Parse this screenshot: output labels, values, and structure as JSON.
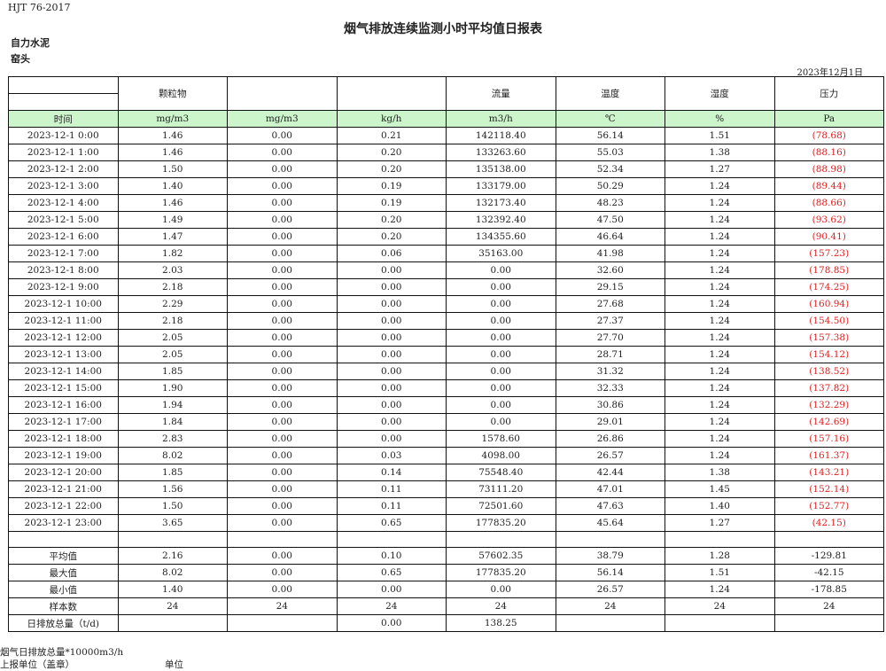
{
  "header": {
    "standard": "HJT  76-2017",
    "title": "烟气排放连续监测小时平均值日报表",
    "company": "自力水泥",
    "unit": "窑头",
    "date": "2023年12月1日"
  },
  "table": {
    "columns": [
      "",
      "颗粒物",
      "",
      "",
      "流量",
      "温度",
      "湿度",
      "压力"
    ],
    "units": [
      "时间",
      "mg/m3",
      "mg/m3",
      "kg/h",
      "m3/h",
      "℃",
      "%",
      "Pa"
    ],
    "rows": [
      [
        "2023-12-1 0:00",
        "1.46",
        "0.00",
        "0.21",
        "142118.40",
        "56.14",
        "1.51",
        "(78.68)"
      ],
      [
        "2023-12-1 1:00",
        "1.46",
        "0.00",
        "0.20",
        "133263.60",
        "55.03",
        "1.38",
        "(88.16)"
      ],
      [
        "2023-12-1 2:00",
        "1.50",
        "0.00",
        "0.20",
        "135138.00",
        "52.34",
        "1.27",
        "(88.98)"
      ],
      [
        "2023-12-1 3:00",
        "1.40",
        "0.00",
        "0.19",
        "133179.00",
        "50.29",
        "1.24",
        "(89.44)"
      ],
      [
        "2023-12-1 4:00",
        "1.46",
        "0.00",
        "0.19",
        "132173.40",
        "48.23",
        "1.24",
        "(88.66)"
      ],
      [
        "2023-12-1 5:00",
        "1.49",
        "0.00",
        "0.20",
        "132392.40",
        "47.50",
        "1.24",
        "(93.62)"
      ],
      [
        "2023-12-1 6:00",
        "1.47",
        "0.00",
        "0.20",
        "134355.60",
        "46.64",
        "1.24",
        "(90.41)"
      ],
      [
        "2023-12-1 7:00",
        "1.82",
        "0.00",
        "0.06",
        "35163.00",
        "41.98",
        "1.24",
        "(157.23)"
      ],
      [
        "2023-12-1 8:00",
        "2.03",
        "0.00",
        "0.00",
        "0.00",
        "32.60",
        "1.24",
        "(178.85)"
      ],
      [
        "2023-12-1 9:00",
        "2.18",
        "0.00",
        "0.00",
        "0.00",
        "29.15",
        "1.24",
        "(174.25)"
      ],
      [
        "2023-12-1 10:00",
        "2.29",
        "0.00",
        "0.00",
        "0.00",
        "27.68",
        "1.24",
        "(160.94)"
      ],
      [
        "2023-12-1 11:00",
        "2.18",
        "0.00",
        "0.00",
        "0.00",
        "27.37",
        "1.24",
        "(154.50)"
      ],
      [
        "2023-12-1 12:00",
        "2.05",
        "0.00",
        "0.00",
        "0.00",
        "27.70",
        "1.24",
        "(157.38)"
      ],
      [
        "2023-12-1 13:00",
        "2.05",
        "0.00",
        "0.00",
        "0.00",
        "28.71",
        "1.24",
        "(154.12)"
      ],
      [
        "2023-12-1 14:00",
        "1.85",
        "0.00",
        "0.00",
        "0.00",
        "31.32",
        "1.24",
        "(138.52)"
      ],
      [
        "2023-12-1 15:00",
        "1.90",
        "0.00",
        "0.00",
        "0.00",
        "32.33",
        "1.24",
        "(137.82)"
      ],
      [
        "2023-12-1 16:00",
        "1.94",
        "0.00",
        "0.00",
        "0.00",
        "30.86",
        "1.24",
        "(132.29)"
      ],
      [
        "2023-12-1 17:00",
        "1.84",
        "0.00",
        "0.00",
        "0.00",
        "29.01",
        "1.24",
        "(142.69)"
      ],
      [
        "2023-12-1 18:00",
        "2.83",
        "0.00",
        "0.00",
        "1578.60",
        "26.86",
        "1.24",
        "(157.16)"
      ],
      [
        "2023-12-1 19:00",
        "8.02",
        "0.00",
        "0.03",
        "4098.00",
        "26.57",
        "1.24",
        "(161.37)"
      ],
      [
        "2023-12-1 20:00",
        "1.85",
        "0.00",
        "0.14",
        "75548.40",
        "42.44",
        "1.38",
        "(143.21)"
      ],
      [
        "2023-12-1 21:00",
        "1.56",
        "0.00",
        "0.11",
        "73111.20",
        "47.01",
        "1.45",
        "(152.14)"
      ],
      [
        "2023-12-1 22:00",
        "1.50",
        "0.00",
        "0.11",
        "72501.60",
        "47.63",
        "1.40",
        "(152.77)"
      ],
      [
        "2023-12-1 23:00",
        "3.65",
        "0.00",
        "0.65",
        "177835.20",
        "45.64",
        "1.27",
        "(42.15)"
      ]
    ],
    "summary": [
      [
        "平均值",
        "2.16",
        "0.00",
        "0.10",
        "57602.35",
        "38.79",
        "1.28",
        "-129.81"
      ],
      [
        "最大值",
        "8.02",
        "0.00",
        "0.65",
        "177835.20",
        "56.14",
        "1.51",
        "-42.15"
      ],
      [
        "最小值",
        "1.40",
        "0.00",
        "0.00",
        "0.00",
        "26.57",
        "1.24",
        "-178.85"
      ],
      [
        "样本数",
        "24",
        "24",
        "24",
        "24",
        "24",
        "24",
        "24"
      ],
      [
        "日排放总量（t/d)",
        "",
        "",
        "0.00",
        "138.25",
        "",
        "",
        ""
      ]
    ]
  },
  "footer": {
    "note": "烟气日排放总量*10000m3/h",
    "reporter_label": "上报单位（盖章）",
    "reporter_value": "单位"
  },
  "colors": {
    "unit_row_bg": "#ccf5cc",
    "negative_text": "#e02020"
  }
}
